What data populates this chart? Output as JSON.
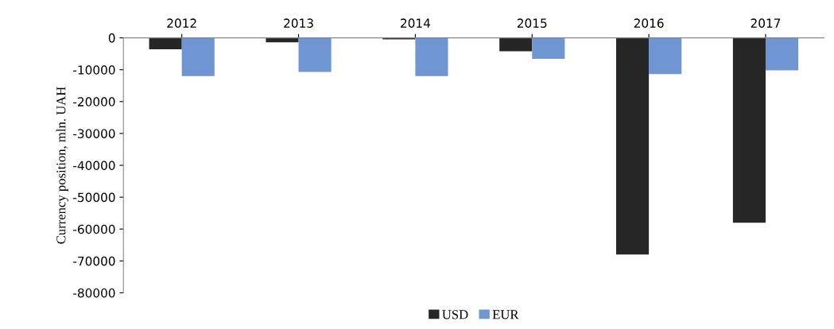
{
  "chart_data": {
    "type": "bar",
    "ylabel": "Currency position, mln. UAH",
    "categories": [
      "2012",
      "2013",
      "2014",
      "2015",
      "2016",
      "2017"
    ],
    "series": [
      {
        "name": "USD",
        "color": "#262626",
        "values": [
          -3600,
          -1400,
          -500,
          -4200,
          -68000,
          -58000
        ]
      },
      {
        "name": "EUR",
        "color": "#6f95d2",
        "values": [
          -12000,
          -10700,
          -12000,
          -6600,
          -11400,
          -10200
        ]
      }
    ],
    "ylim": [
      -80000,
      0
    ],
    "yticks": [
      -80000,
      -70000,
      -60000,
      -50000,
      -40000,
      -30000,
      -20000,
      -10000,
      0
    ],
    "grid": false,
    "legend": "bottom"
  }
}
